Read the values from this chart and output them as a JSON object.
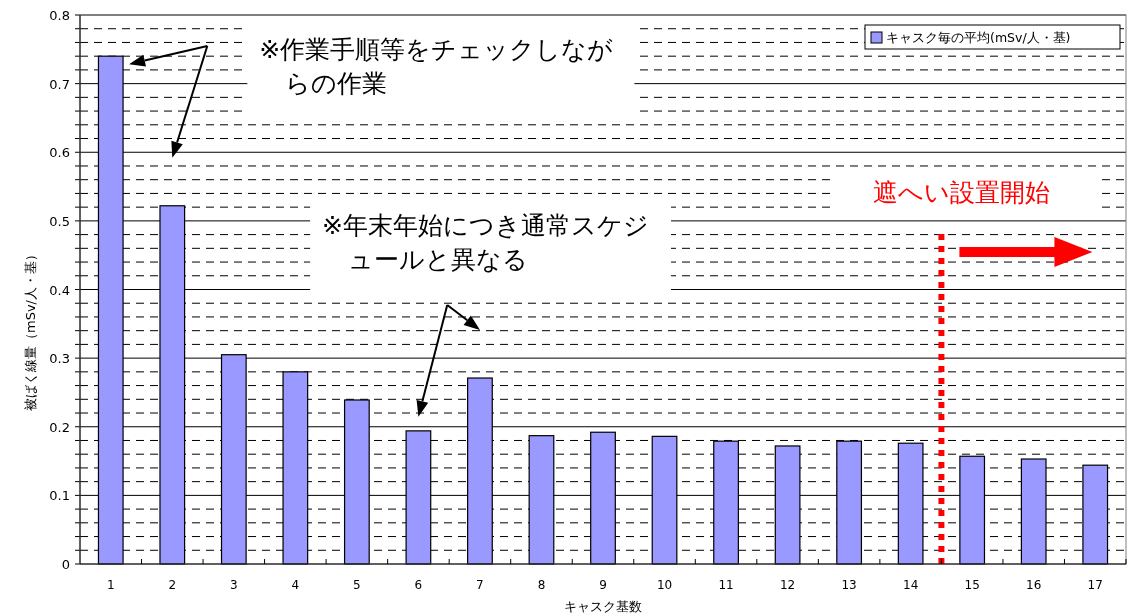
{
  "chart_data": {
    "type": "bar",
    "x": [
      1,
      2,
      3,
      4,
      5,
      6,
      7,
      8,
      9,
      10,
      11,
      12,
      13,
      14,
      15,
      16,
      17
    ],
    "series": [
      {
        "name": "キャスク毎の平均(mSv/人・基)",
        "color": "#9999ff",
        "values": [
          0.74,
          0.522,
          0.305,
          0.28,
          0.239,
          0.194,
          0.271,
          0.187,
          0.192,
          0.186,
          0.179,
          0.172,
          0.179,
          0.176,
          0.157,
          0.153,
          0.144
        ]
      }
    ],
    "xlabel": "キャスク基数",
    "ylabel": "被ばく線量（mSv/人・基）",
    "xlim": [
      0.5,
      17.5
    ],
    "xticks": [
      1,
      2,
      3,
      4,
      5,
      6,
      7,
      8,
      9,
      10,
      11,
      12,
      13,
      14,
      15,
      16,
      17
    ],
    "ylim": [
      0,
      0.8
    ],
    "yticks": [
      0,
      {
        "value": 0.02,
        "label": null
      },
      {
        "value": 0.04,
        "label": null
      },
      {
        "value": 0.06,
        "label": null
      },
      {
        "value": 0.08,
        "label": null
      },
      0.1,
      {
        "value": 0.12,
        "label": null
      },
      {
        "value": 0.14,
        "label": null
      },
      {
        "value": 0.16,
        "label": null
      },
      {
        "value": 0.18,
        "label": null
      },
      0.2,
      {
        "value": 0.22,
        "label": null
      },
      {
        "value": 0.24,
        "label": null
      },
      {
        "value": 0.26,
        "label": null
      },
      {
        "value": 0.28,
        "label": null
      },
      0.3,
      {
        "value": 0.32,
        "label": null
      },
      {
        "value": 0.34,
        "label": null
      },
      {
        "value": 0.36,
        "label": null
      },
      {
        "value": 0.38,
        "label": null
      },
      0.4,
      {
        "value": 0.42,
        "label": null
      },
      {
        "value": 0.44,
        "label": null
      },
      {
        "value": 0.46,
        "label": null
      },
      {
        "value": 0.48,
        "label": null
      },
      0.5,
      {
        "value": 0.52,
        "label": null
      },
      {
        "value": 0.54,
        "label": null
      },
      {
        "value": 0.56,
        "label": null
      },
      {
        "value": 0.58,
        "label": null
      },
      0.6,
      {
        "value": 0.62,
        "label": null
      },
      {
        "value": 0.64,
        "label": null
      },
      {
        "value": 0.66,
        "label": null
      },
      {
        "value": 0.68,
        "label": null
      },
      0.7,
      {
        "value": 0.72,
        "label": null
      },
      {
        "value": 0.74,
        "label": null
      },
      {
        "value": 0.76,
        "label": null
      },
      {
        "value": 0.78,
        "label": null
      },
      0.8
    ],
    "grid": "y",
    "legend": "top right",
    "ref_lines": [
      {
        "axis": "x",
        "value": 14.5,
        "label": "遮へい設置開始",
        "color": "#ff0000",
        "line_style": "dotted"
      }
    ],
    "annotations": [
      "※作業手順等をチェックしながらの作業",
      "※年末年始につき通常スケジュールと異なる"
    ]
  }
}
